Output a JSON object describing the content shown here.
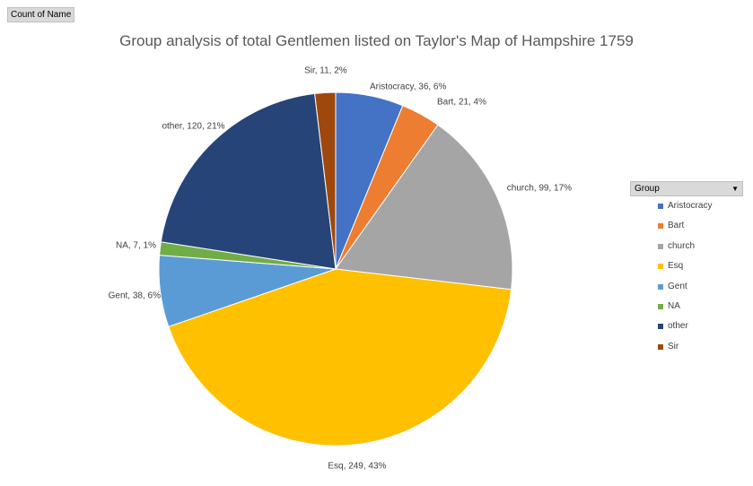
{
  "field_button": "Count of Name",
  "chart_data": {
    "type": "pie",
    "title": "Group analysis of total Gentlemen listed on Taylor's Map of Hampshire 1759",
    "legend_title": "Group",
    "legend_position": "right",
    "slices": [
      {
        "name": "Aristocracy",
        "value": 36,
        "percent": "6%",
        "color": "#4472C4"
      },
      {
        "name": "Bart",
        "value": 21,
        "percent": "4%",
        "color": "#ED7D31"
      },
      {
        "name": "church",
        "value": 99,
        "percent": "17%",
        "color": "#A5A5A5"
      },
      {
        "name": "Esq",
        "value": 249,
        "percent": "43%",
        "color": "#FFC000"
      },
      {
        "name": "Gent",
        "value": 38,
        "percent": "6%",
        "color": "#5B9BD5"
      },
      {
        "name": "NA",
        "value": 7,
        "percent": "1%",
        "color": "#70AD47"
      },
      {
        "name": "other",
        "value": 120,
        "percent": "21%",
        "color": "#264478"
      },
      {
        "name": "Sir",
        "value": 11,
        "percent": "2%",
        "color": "#9E480E"
      }
    ]
  }
}
